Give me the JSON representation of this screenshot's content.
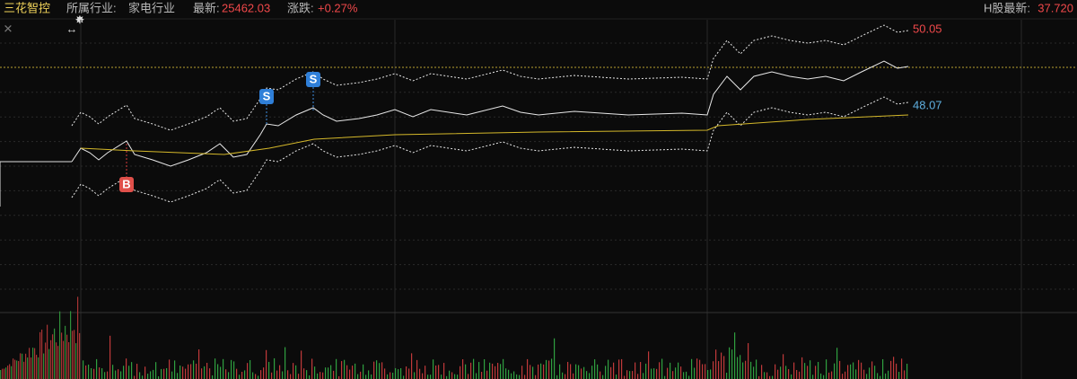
{
  "header": {
    "stock_name": "三花智控",
    "industry_label": "所属行业:",
    "industry": "家电行业",
    "latest_label": "最新:",
    "latest": "25462.03",
    "change_label": "涨跌:",
    "change": "+0.27%",
    "h_share_label": "H股最新:",
    "h_share_price": "37.720"
  },
  "chart": {
    "upper_label": "50.05",
    "lower_label": "48.07",
    "markers": [
      {
        "label": "B"
      },
      {
        "label": "S"
      },
      {
        "label": "S"
      }
    ]
  }
}
